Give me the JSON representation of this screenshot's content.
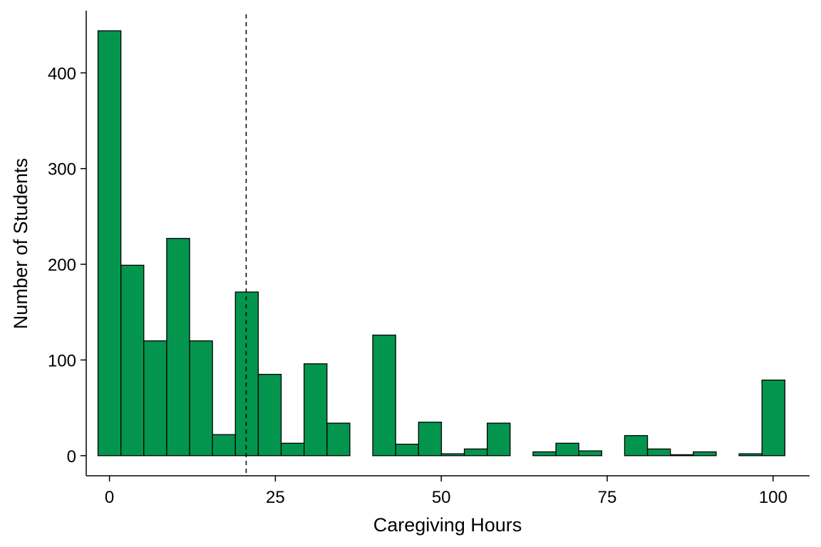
{
  "chart_data": {
    "type": "bar",
    "subtype": "histogram",
    "title": "",
    "xlabel": "Caregiving Hours",
    "ylabel": "Number of Students",
    "xlim": [
      -3.5,
      105.5
    ],
    "ylim": [
      -21,
      465
    ],
    "x_ticks": [
      0,
      25,
      50,
      75,
      100
    ],
    "y_ticks": [
      0,
      100,
      200,
      300,
      400
    ],
    "bin_width": 3.45,
    "bin_centers": [
      0,
      3.45,
      6.9,
      10.35,
      13.8,
      17.25,
      20.7,
      24.15,
      27.6,
      31.05,
      34.5,
      37.95,
      41.4,
      44.85,
      48.3,
      51.75,
      55.2,
      58.65,
      62.1,
      65.55,
      69,
      72.45,
      75.9,
      79.35,
      82.8,
      86.25,
      89.7,
      93.15,
      96.6,
      100.05
    ],
    "values": [
      444,
      199,
      120,
      227,
      120,
      22,
      171,
      85,
      13,
      96,
      34,
      0,
      126,
      12,
      35,
      2,
      7,
      34,
      0,
      4,
      13,
      5,
      0,
      21,
      7,
      1,
      4,
      0,
      2,
      79
    ],
    "reference_line": {
      "x": 20.6,
      "style": "dashed"
    },
    "grid": false,
    "legend": "none",
    "colors": {
      "bar_fill": "#03954E",
      "bar_stroke": "#000000",
      "axis": "#000000"
    }
  }
}
